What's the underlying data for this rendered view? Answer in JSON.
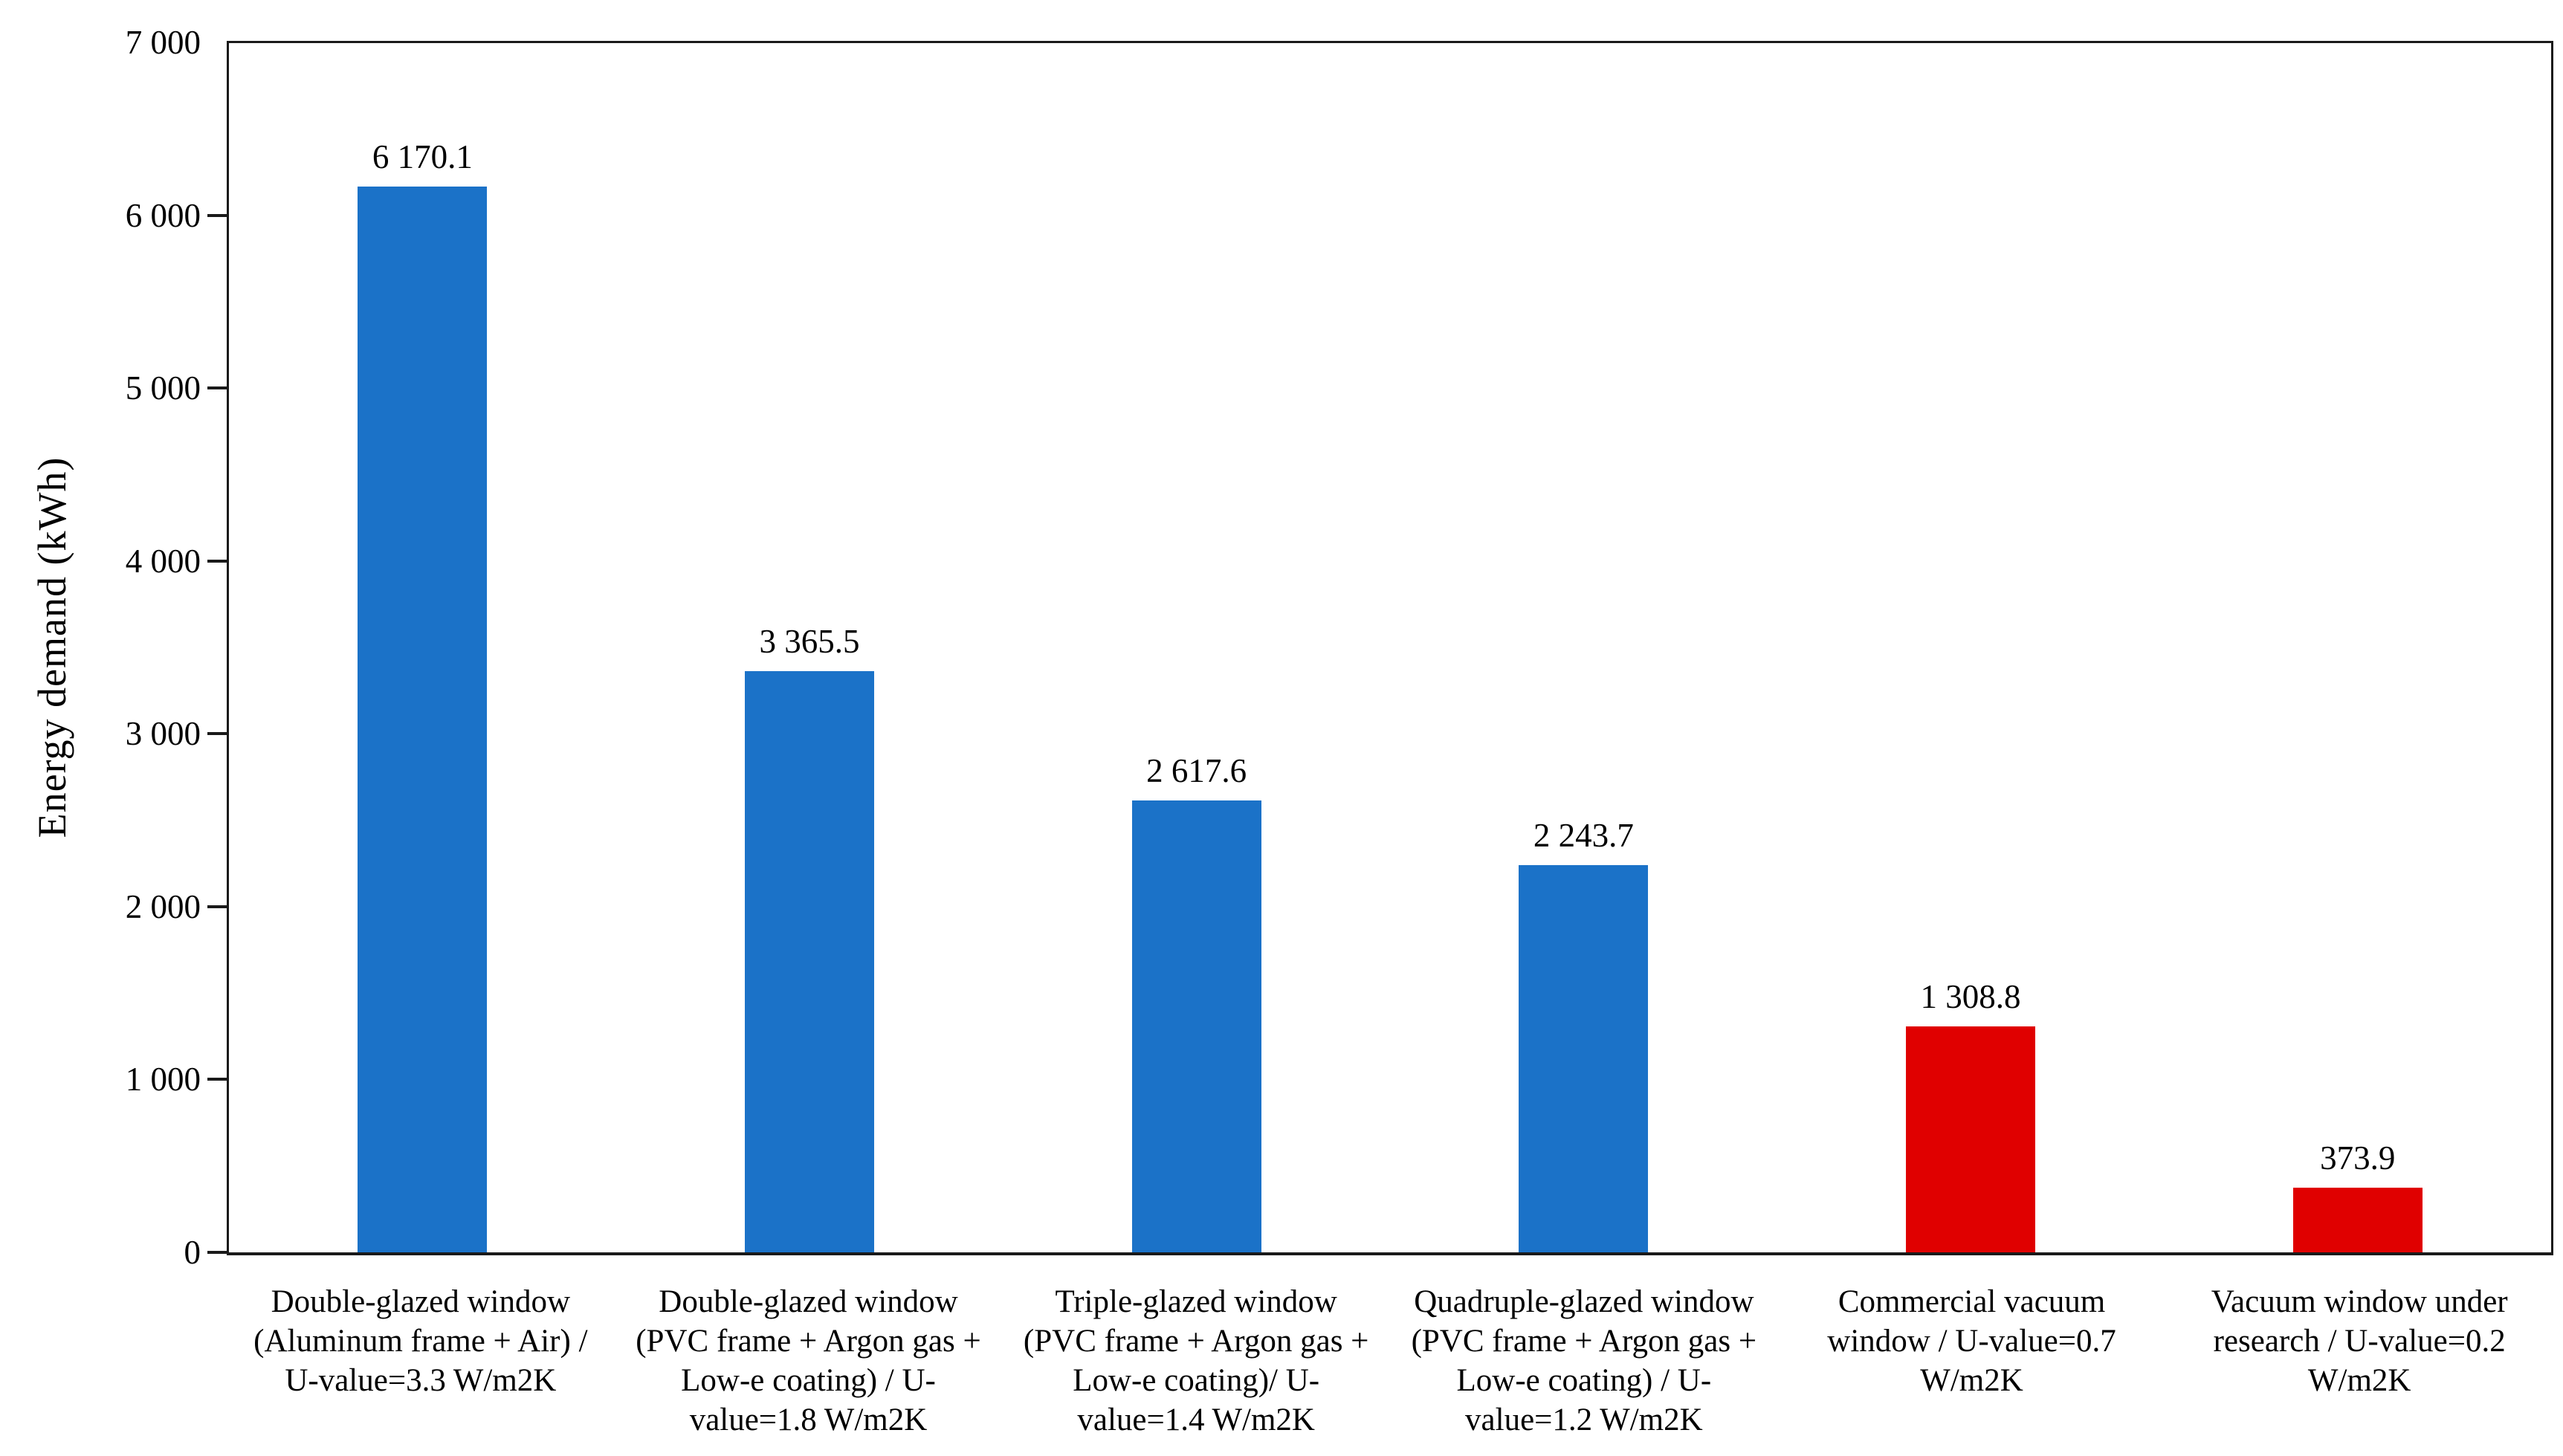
{
  "chart_data": {
    "type": "bar",
    "title": "",
    "xlabel": "",
    "ylabel": "Energy demand (kWh)",
    "ylim": [
      0,
      7000
    ],
    "y_tick_step": 1000,
    "grid": false,
    "legend": "none",
    "y_ticks": [
      "7 000",
      "6 000",
      "5 000",
      "4 000",
      "3 000",
      "2 000",
      "1 000",
      "0"
    ],
    "categories": [
      [
        "Double-glazed window",
        "(Aluminum frame + Air) /",
        "U-value=3.3 W/m2K"
      ],
      [
        "Double-glazed window",
        "(PVC frame + Argon gas +",
        "Low-e coating)  / U-",
        "value=1.8 W/m2K"
      ],
      [
        "Triple-glazed window",
        "(PVC frame + Argon gas +",
        "Low-e coating)/ U-",
        "value=1.4 W/m2K"
      ],
      [
        "Quadruple-glazed window",
        "(PVC frame + Argon gas +",
        "Low-e coating)  / U-",
        "value=1.2 W/m2K"
      ],
      [
        "Commercial vacuum",
        "window / U-value=0.7",
        "W/m2K"
      ],
      [
        "Vacuum window under",
        "research  / U-value=0.2",
        "W/m2K"
      ]
    ],
    "values": [
      6170.1,
      3365.5,
      2617.6,
      2243.7,
      1308.8,
      373.9
    ],
    "value_labels": [
      "6 170.1",
      "3 365.5",
      "2 617.6",
      "2 243.7",
      "1 308.8",
      "373.9"
    ],
    "bar_colors": [
      "#1B72C8",
      "#1B72C8",
      "#1B72C8",
      "#1B72C8",
      "#E00000",
      "#E00000"
    ]
  },
  "colors": {
    "bar_blue": "#1B72C8",
    "bar_red": "#E00000",
    "axis": "#1A1A1A",
    "text": "#000000",
    "background": "#FFFFFF"
  }
}
